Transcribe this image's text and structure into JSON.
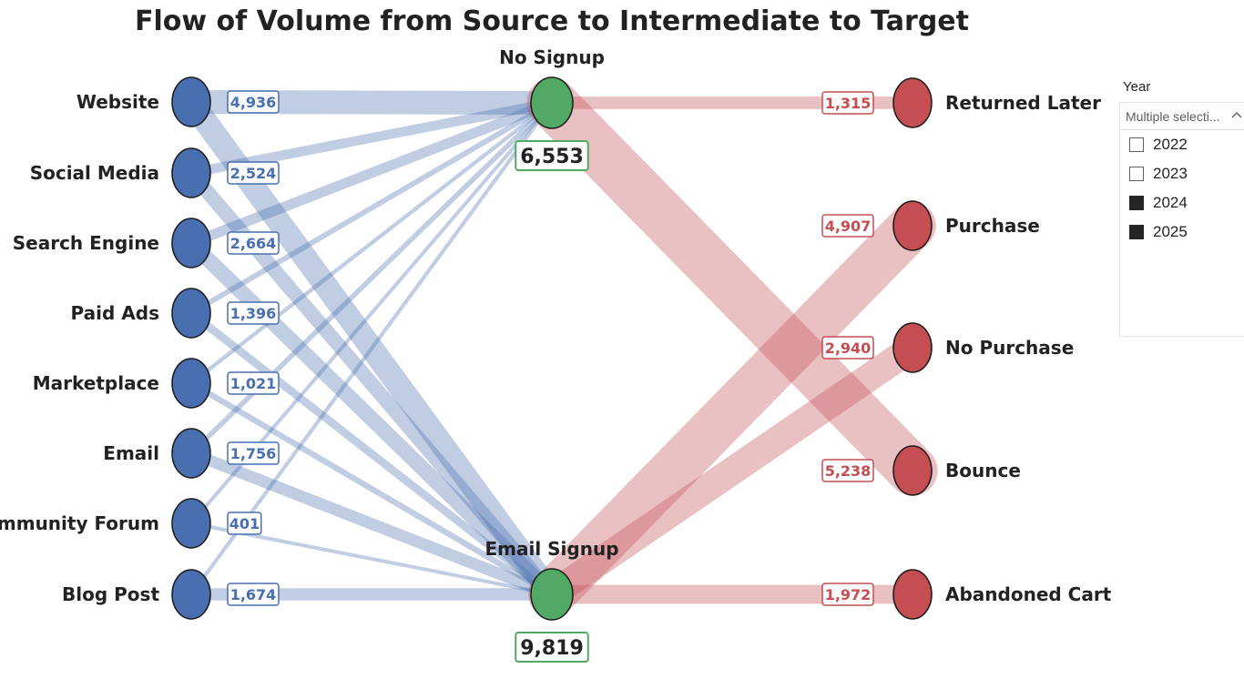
{
  "chart_data": {
    "type": "sankey",
    "title": "Flow of Volume from Source to Intermediate to Target",
    "sources": [
      {
        "name": "Website",
        "value": "4,936"
      },
      {
        "name": "Social Media",
        "value": "2,524"
      },
      {
        "name": "Search Engine",
        "value": "2,664"
      },
      {
        "name": "Paid Ads",
        "value": "1,396"
      },
      {
        "name": "Marketplace",
        "value": "1,021"
      },
      {
        "name": "Email",
        "value": "1,756"
      },
      {
        "name": "Community Forum",
        "value": "401"
      },
      {
        "name": "Blog Post",
        "value": "1,674"
      }
    ],
    "intermediates": [
      {
        "name": "No Signup",
        "value": "6,553"
      },
      {
        "name": "Email Signup",
        "value": "9,819"
      }
    ],
    "targets": [
      {
        "name": "Returned Later",
        "value": "1,315"
      },
      {
        "name": "Purchase",
        "value": "4,907"
      },
      {
        "name": "No Purchase",
        "value": "2,940"
      },
      {
        "name": "Bounce",
        "value": "5,238"
      },
      {
        "name": "Abandoned Cart",
        "value": "1,972"
      }
    ],
    "links_source_to_intermediate": [
      {
        "source": "Website",
        "target": "No Signup",
        "value": 2468
      },
      {
        "source": "Website",
        "target": "Email Signup",
        "value": 2468
      },
      {
        "source": "Social Media",
        "target": "No Signup",
        "value": 1010
      },
      {
        "source": "Social Media",
        "target": "Email Signup",
        "value": 1514
      },
      {
        "source": "Search Engine",
        "target": "No Signup",
        "value": 1066
      },
      {
        "source": "Search Engine",
        "target": "Email Signup",
        "value": 1598
      },
      {
        "source": "Paid Ads",
        "target": "No Signup",
        "value": 558
      },
      {
        "source": "Paid Ads",
        "target": "Email Signup",
        "value": 838
      },
      {
        "source": "Marketplace",
        "target": "No Signup",
        "value": 408
      },
      {
        "source": "Marketplace",
        "target": "Email Signup",
        "value": 613
      },
      {
        "source": "Email",
        "target": "No Signup",
        "value": 527
      },
      {
        "source": "Email",
        "target": "Email Signup",
        "value": 1229
      },
      {
        "source": "Community Forum",
        "target": "No Signup",
        "value": 120
      },
      {
        "source": "Community Forum",
        "target": "Email Signup",
        "value": 281
      },
      {
        "source": "Blog Post",
        "target": "No Signup",
        "value": 396
      },
      {
        "source": "Blog Post",
        "target": "Email Signup",
        "value": 1278
      }
    ],
    "links_intermediate_to_target": [
      {
        "source": "No Signup",
        "target": "Returned Later",
        "value": 1315
      },
      {
        "source": "No Signup",
        "target": "Bounce",
        "value": 5238
      },
      {
        "source": "Email Signup",
        "target": "Purchase",
        "value": 4907
      },
      {
        "source": "Email Signup",
        "target": "No Purchase",
        "value": 2940
      },
      {
        "source": "Email Signup",
        "target": "Abandoned Cart",
        "value": 1972
      }
    ],
    "colors": {
      "source": "#4a6fb0",
      "intermediate": "#52a865",
      "target": "#c44e52",
      "source_link": "#4a6fb0",
      "target_link": "#c44e52"
    }
  },
  "slicer": {
    "title": "Year",
    "dropdown_text": "Multiple selecti...",
    "options": [
      {
        "label": "2022",
        "checked": false
      },
      {
        "label": "2023",
        "checked": false
      },
      {
        "label": "2024",
        "checked": true
      },
      {
        "label": "2025",
        "checked": true
      }
    ]
  }
}
